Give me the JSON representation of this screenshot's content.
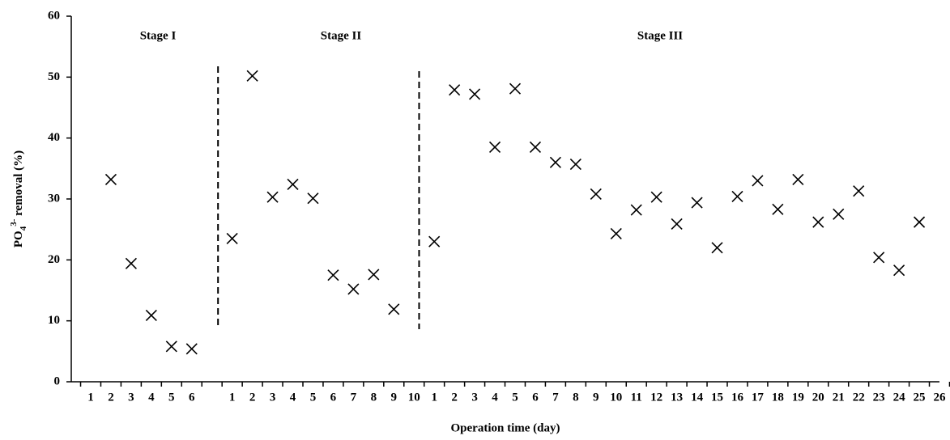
{
  "chart_data": {
    "type": "scatter",
    "x_label": "Operation time (day)",
    "y_label": {
      "base": "PO",
      "sub": "4",
      "sup": "3-",
      "rest": " removal (%)"
    },
    "annotations": [
      "Stage I",
      "Stage II",
      "Stage III"
    ],
    "categories": [
      "1",
      "2",
      "3",
      "4",
      "5",
      "6",
      null,
      "1",
      "2",
      "3",
      "4",
      "5",
      "6",
      "7",
      "8",
      "9",
      "10",
      "1",
      "2",
      "3",
      "4",
      "5",
      "6",
      "7",
      "8",
      "9",
      "10",
      "11",
      "12",
      "13",
      "14",
      "15",
      "16",
      "17",
      "18",
      "19",
      "20",
      "21",
      "22",
      "23",
      "24",
      "25",
      "26"
    ],
    "values": [
      null,
      33.2,
      19.4,
      10.9,
      5.8,
      5.4,
      null,
      23.5,
      50.2,
      30.3,
      32.4,
      30.1,
      17.5,
      15.2,
      17.6,
      11.9,
      null,
      23,
      47.9,
      47.2,
      38.5,
      48.1,
      38.5,
      36,
      35.7,
      30.8,
      24.3,
      28.2,
      30.3,
      25.9,
      29.4,
      22,
      30.4,
      33,
      28.3,
      33.2,
      26.2,
      27.5,
      31.3,
      20.4,
      18.3,
      26.2,
      null
    ],
    "color": "#000000",
    "ylim": [
      0,
      60
    ],
    "yticks": [
      0,
      10,
      20,
      30,
      40,
      50,
      60
    ]
  }
}
